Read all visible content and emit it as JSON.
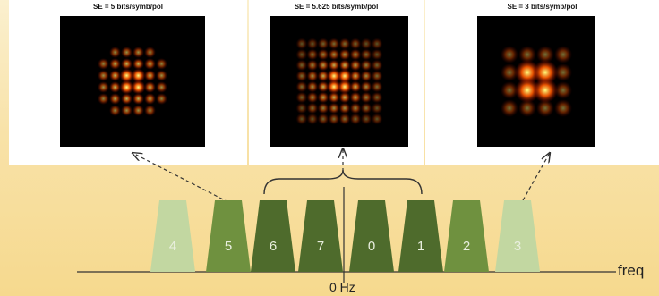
{
  "panels": [
    {
      "title": "SE = 5 bits/symb/pol",
      "constellation_size": 6,
      "pattern": "cross32"
    },
    {
      "title": "SE = 5.625 bits/symb/pol",
      "constellation_size": 8,
      "pattern": "square"
    },
    {
      "title": "SE = 3 bits/symb/pol",
      "constellation_size": 4,
      "pattern": "inner"
    }
  ],
  "channels": [
    {
      "label": "4",
      "color": "#c2d7a1"
    },
    {
      "label": "5",
      "color": "#6f913f"
    },
    {
      "label": "6",
      "color": "#4e6b2c"
    },
    {
      "label": "7",
      "color": "#4e6b2c"
    },
    {
      "label": "0",
      "color": "#4e6b2c"
    },
    {
      "label": "1",
      "color": "#4e6b2c"
    },
    {
      "label": "2",
      "color": "#6f913f"
    },
    {
      "label": "3",
      "color": "#c2d7a1"
    }
  ],
  "axis": {
    "zero_label": "0 Hz",
    "freq_label": "freq"
  },
  "colors": {
    "line": "#333333",
    "spot_core": "#ffff80",
    "spot_mid": "#ff5a00",
    "spot_edge": "#8a0000"
  }
}
